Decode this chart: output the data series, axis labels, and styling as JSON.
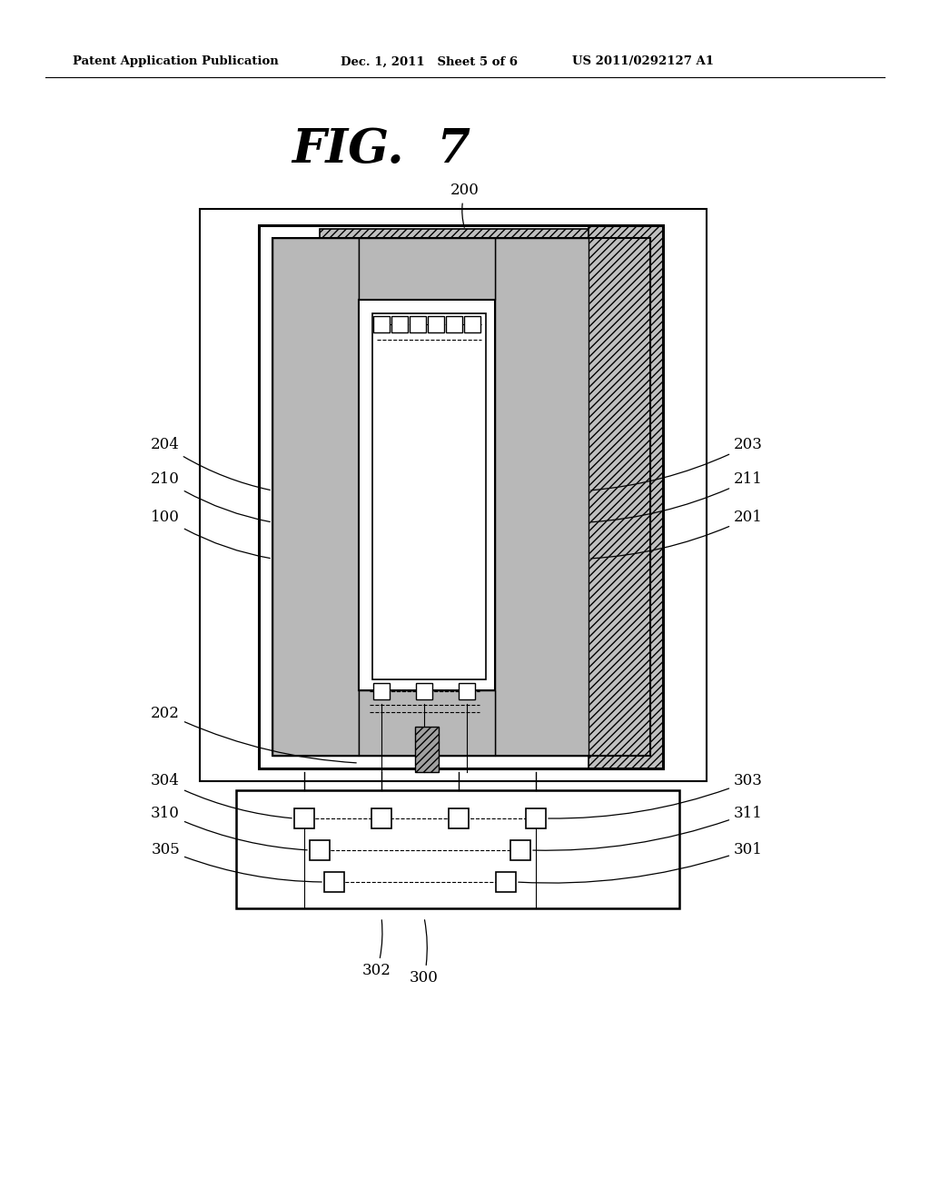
{
  "title": "FIG.  7",
  "header_left": "Patent Application Publication",
  "header_mid": "Dec. 1, 2011   Sheet 5 of 6",
  "header_right": "US 2011/0292127 A1",
  "bg_color": "#ffffff",
  "lc": "#000000",
  "stipple_color": "#b8b8b8",
  "hatch_color": "#909090"
}
